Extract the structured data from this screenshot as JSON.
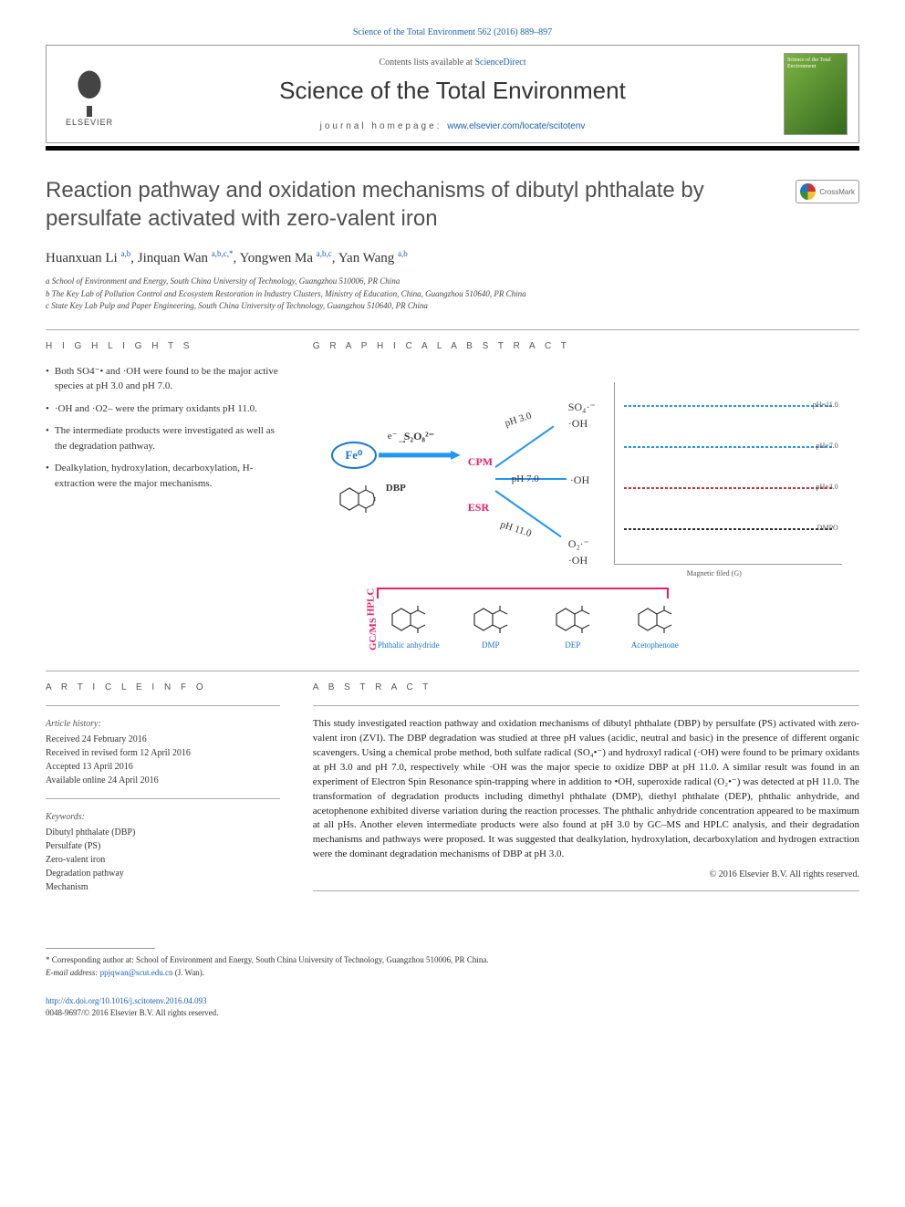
{
  "top_citation": "Science of the Total Environment 562 (2016) 889–897",
  "header": {
    "contents_prefix": "Contents lists available at ",
    "contents_link": "ScienceDirect",
    "journal_name": "Science of the Total Environment",
    "homepage_prefix": "journal homepage: ",
    "homepage_url": "www.elsevier.com/locate/scitotenv",
    "publisher_name": "ELSEVIER",
    "journal_thumb_text": "Science of the Total Environment"
  },
  "crossmark": "CrossMark",
  "title": "Reaction pathway and oxidation mechanisms of dibutyl phthalate by persulfate activated with zero-valent iron",
  "authors_html": "Huanxuan Li <sup>a,b</sup>, Jinquan Wan <sup>a,b,c,*</sup>, Yongwen Ma <sup>a,b,c</sup>, Yan Wang <sup>a,b</sup>",
  "affiliations": {
    "a": "a  School of Environment and Energy, South China University of Technology, Guangzhou 510006, PR China",
    "b": "b  The Key Lab of Pollution Control and Ecosystem Restoration in Industry Clusters, Ministry of Education, China, Guangzhou 510640, PR China",
    "c": "c  State Key Lab Pulp and Paper Engineering, South China University of Technology, Guangzhou 510640, PR China"
  },
  "labels": {
    "highlights": "H I G H L I G H T S",
    "graphical": "G R A P H I C A L   A B S T R A C T",
    "article_info": "A R T I C L E   I N F O",
    "abstract": "A B S T R A C T"
  },
  "highlights": [
    "Both SO4⁻• and ·OH were found to be the major active species at pH 3.0 and pH 7.0.",
    "·OH and ·O2– were the primary oxidants pH 11.0.",
    "The intermediate products were investigated as well as the degradation pathway.",
    "Dealkylation, hydroxylation, decarboxylation, H-extraction were the major mechanisms."
  ],
  "graphical": {
    "fe": "Fe⁰",
    "e": "e⁻",
    "s2o8": "S₂O₈²⁻",
    "dbp": "DBP",
    "cpm": "CPM",
    "esr": "ESR",
    "ph3": "pH 3.0",
    "ph7": "pH 7.0",
    "ph11": "pH 11.0",
    "so4": "SO₄·⁻",
    "oh": "·OH",
    "o2": "O₂·⁻",
    "hplc": "HPLC",
    "gcms": "GC/MS",
    "esr_labels": [
      "pH=11.0",
      "pH=7.0",
      "pH=3.0",
      "DMPO"
    ],
    "esr_colors": [
      "#2196f3",
      "#2196f3",
      "#d32f2f",
      "#333333"
    ],
    "xlabel": "Magnetic filed (G)",
    "xticks": [
      "3465",
      "3480",
      "3495",
      "3510",
      "3525",
      "3540",
      "3555",
      "3570"
    ],
    "products": [
      "Phthalic anhydride",
      "DMP",
      "DEP",
      "Acetophenone"
    ]
  },
  "article_info": {
    "history_label": "Article history:",
    "received": "Received 24 February 2016",
    "revised": "Received in revised form 12 April 2016",
    "accepted": "Accepted 13 April 2016",
    "online": "Available online 24 April 2016",
    "keywords_label": "Keywords:",
    "keywords": [
      "Dibutyl phthalate (DBP)",
      "Persulfate (PS)",
      "Zero-valent iron",
      "Degradation pathway",
      "Mechanism"
    ]
  },
  "abstract": "This study investigated reaction pathway and oxidation mechanisms of dibutyl phthalate (DBP) by persulfate (PS) activated with zero-valent iron (ZVI). The DBP degradation was studied at three pH values (acidic, neutral and basic) in the presence of different organic scavengers. Using a chemical probe method, both sulfate radical (SO₄•⁻) and hydroxyl radical (·OH) were found to be primary oxidants at pH 3.0 and pH 7.0, respectively while ·OH was the major specie to oxidize DBP at pH 11.0. A similar result was found in an experiment of Electron Spin Resonance spin-trapping where in addition to •OH, superoxide radical (O₂•⁻) was detected at pH 11.0. The transformation of degradation products including dimethyl phthalate (DMP), diethyl phthalate (DEP), phthalic anhydride, and acetophenone exhibited diverse variation during the reaction processes. The phthalic anhydride concentration appeared to be maximum at all pHs. Another eleven intermediate products were also found at pH 3.0 by GC–MS and HPLC analysis, and their degradation mechanisms and pathways were proposed. It was suggested that dealkylation, hydroxylation, decarboxylation and hydrogen extraction were the dominant degradation mechanisms of DBP at pH 3.0.",
  "copyright": "© 2016 Elsevier B.V. All rights reserved.",
  "footnote": {
    "star": "* Corresponding author at: School of Environment and Energy, South China University of Technology, Guangzhou 510006, PR China.",
    "email_label": "E-mail address: ",
    "email": "ppjqwan@scut.edu.cn",
    "email_suffix": " (J. Wan)."
  },
  "doi": {
    "url": "http://dx.doi.org/10.1016/j.scitotenv.2016.04.093",
    "copyright_line": "0048-9697/© 2016 Elsevier B.V. All rights reserved."
  },
  "colors": {
    "link": "#1a5fb4",
    "accent": "#2196f3",
    "pink": "#e91e63",
    "text": "#222222",
    "grey": "#555555"
  }
}
